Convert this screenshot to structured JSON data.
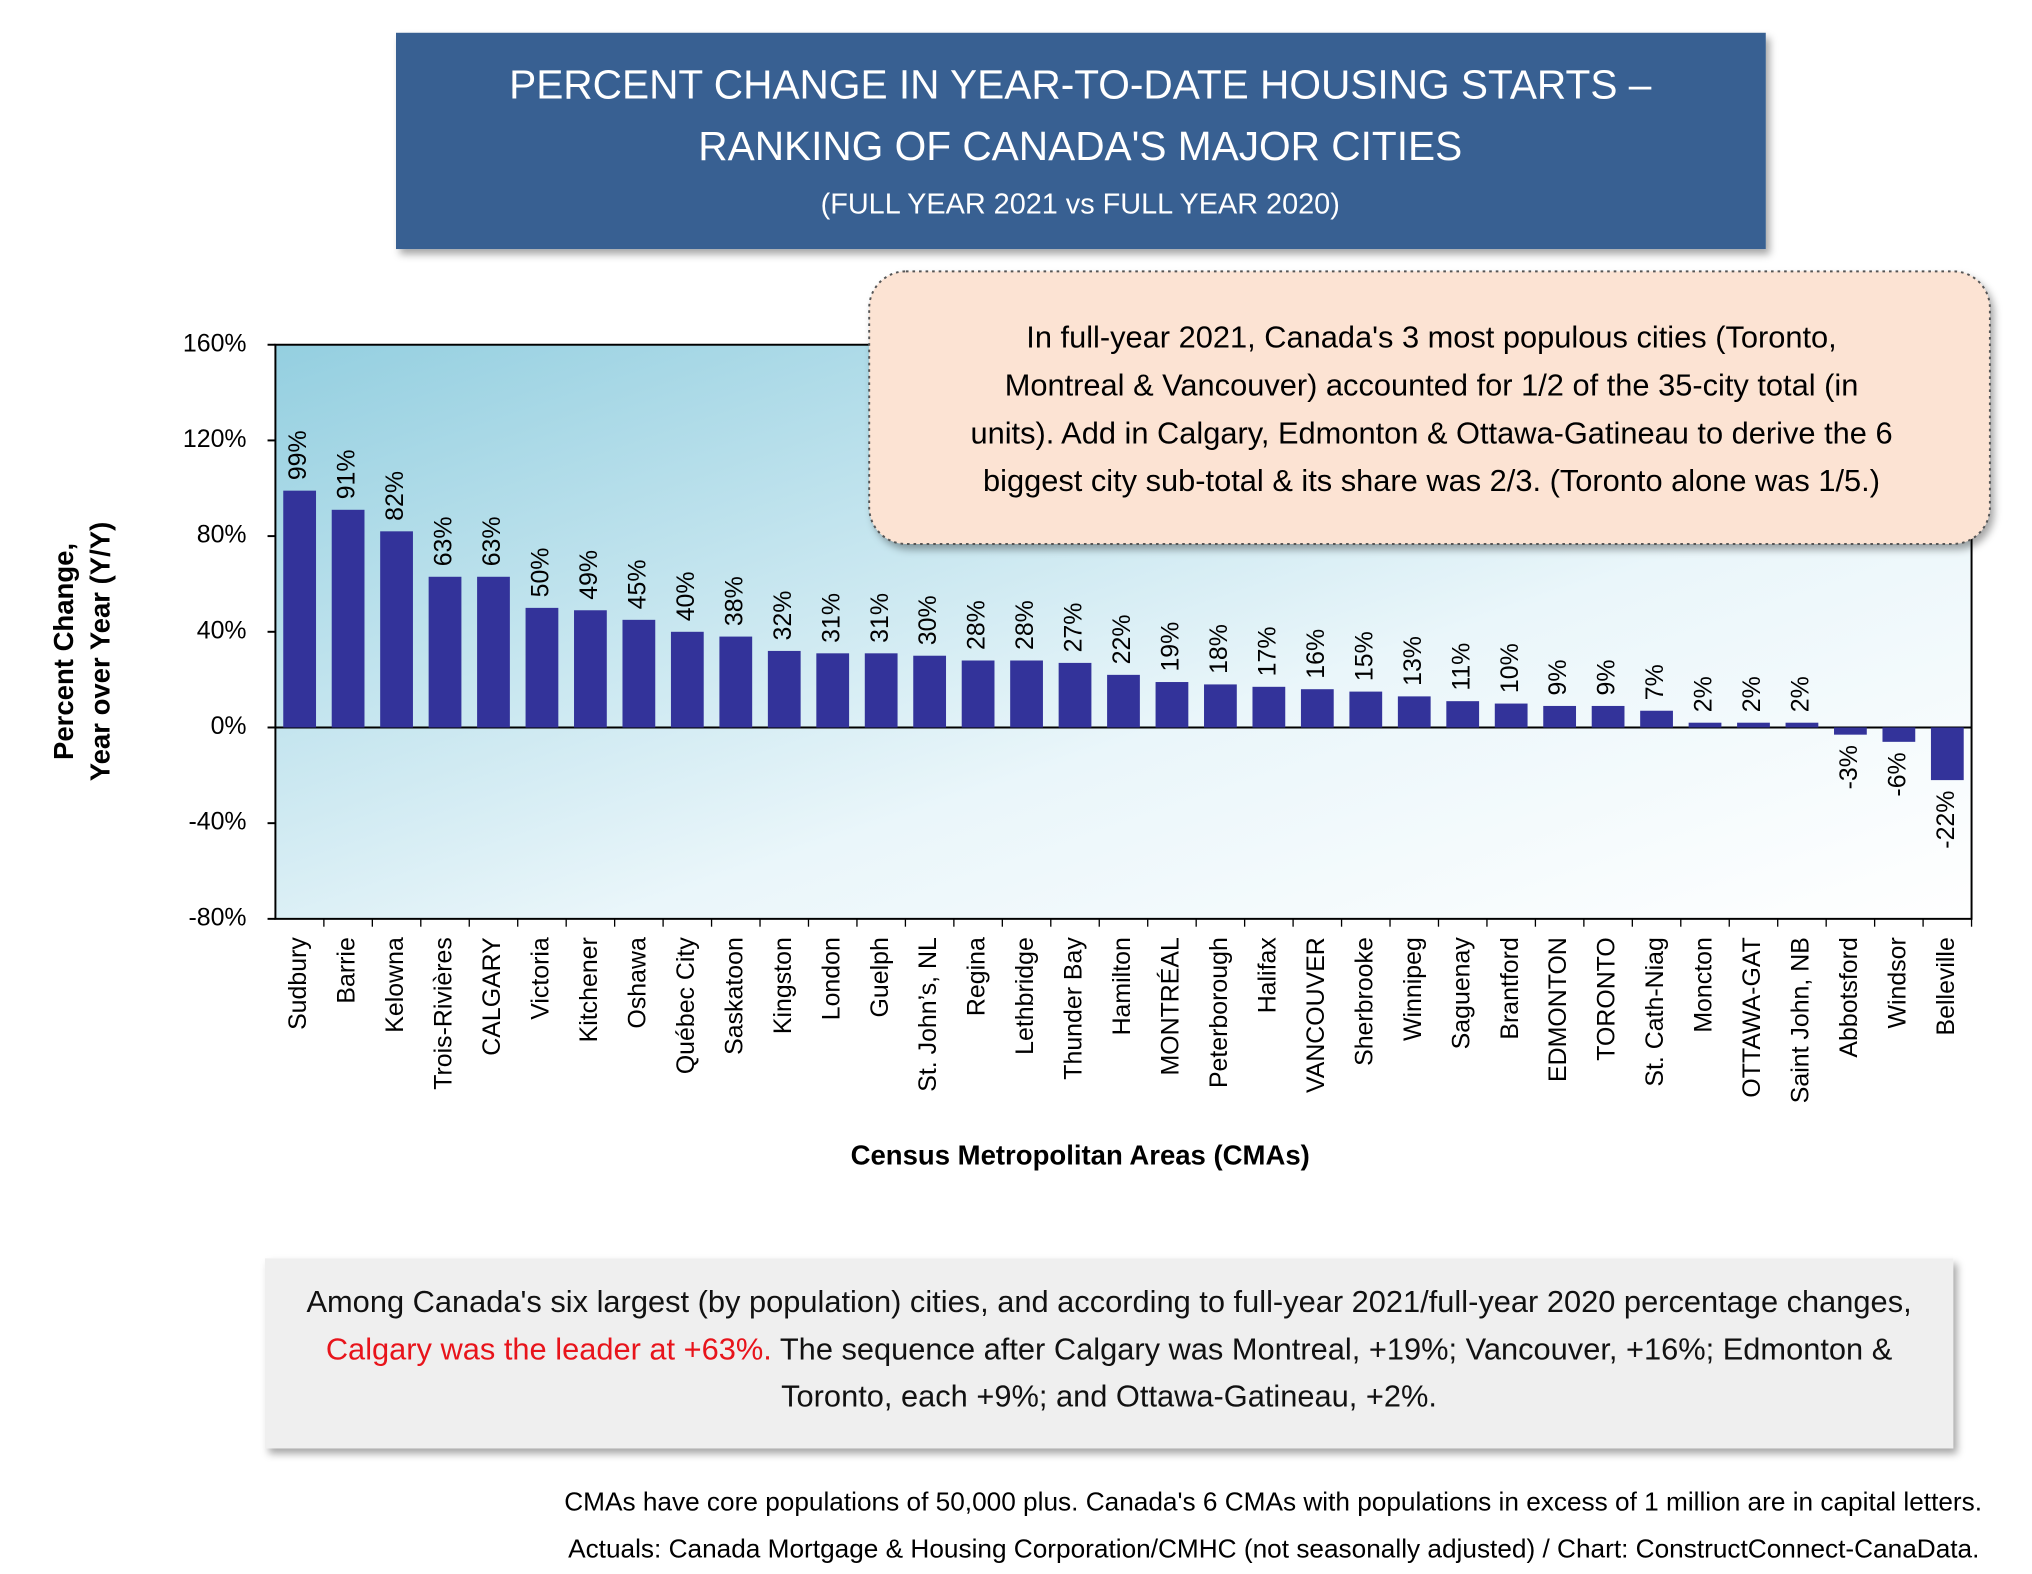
{
  "chart_data": {
    "type": "bar",
    "title": [
      "PERCENT CHANGE IN YEAR-TO-DATE HOUSING STARTS –",
      "RANKING OF CANADA'S MAJOR CITIES"
    ],
    "subtitle": "(FULL YEAR 2021 vs FULL YEAR 2020)",
    "annotation": [
      "In full-year 2021, Canada's 3 most populous cities (Toronto,",
      "Montreal & Vancouver)  accounted for 1/2 of the 35-city total (in",
      "units). Add in Calgary, Edmonton & Ottawa-Gatineau to derive the 6",
      "biggest city sub-total & its share was 2/3. (Toronto alone was 1/5.)"
    ],
    "y_label": [
      "Percent Change,",
      "Year over Year (Y/Y)"
    ],
    "x_label": "Census Metropolitan Areas (CMAs)",
    "categories": [
      "Sudbury",
      "Barrie",
      "Kelowna",
      "Trois-Rivières",
      "CALGARY",
      "Victoria",
      "Kitchener",
      "Oshawa",
      "Québec City",
      "Saskatoon",
      "Kingston",
      "London",
      "Guelph",
      "St. John’s, NL",
      "Regina",
      "Lethbridge",
      "Thunder Bay",
      "Hamilton",
      "MONTRÉAL",
      "Peterborough",
      "Halifax",
      "VANCOUVER",
      "Sherbrooke",
      "Winnipeg",
      "Saguenay",
      "Brantford",
      "EDMONTON",
      "TORONTO",
      "St. Cath-Niag",
      "Moncton",
      "OTTAWA-GAT",
      "Saint John, NB",
      "Abbotsford",
      "Windsor",
      "Belleville"
    ],
    "values": [
      99,
      91,
      82,
      63,
      63,
      50,
      49,
      45,
      40,
      38,
      32,
      31,
      31,
      30,
      28,
      28,
      27,
      22,
      19,
      18,
      17,
      16,
      15,
      13,
      11,
      10,
      9,
      9,
      7,
      2,
      2,
      2,
      -3,
      -6,
      -22
    ],
    "value_labels": [
      "99%",
      "91%",
      "82%",
      "63%",
      "63%",
      "50%",
      "49%",
      "45%",
      "40%",
      "38%",
      "32%",
      "31%",
      "31%",
      "30%",
      "28%",
      "28%",
      "27%",
      "22%",
      "19%",
      "18%",
      "17%",
      "16%",
      "15%",
      "13%",
      "11%",
      "10%",
      "9%",
      "9%",
      "7%",
      "2%",
      "2%",
      "2%",
      "-3%",
      "-6%",
      "-22%"
    ],
    "color": "#33339a",
    "ylim": [
      -80,
      160
    ],
    "yticks": [
      {
        "value": -80,
        "label": "-80%"
      },
      {
        "value": -40,
        "label": "-40%"
      },
      {
        "value": 0,
        "label": "0%"
      },
      {
        "value": 40,
        "label": "40%"
      },
      {
        "value": 80,
        "label": "80%"
      },
      {
        "value": 120,
        "label": "120%"
      },
      {
        "value": 160,
        "label": "160%"
      }
    ],
    "note": {
      "before": "Among Canada's six largest (by population) cities, and according to full-year 2021/full-year 2020 percentage changes, ",
      "highlight": "Calgary was the leader at +63%.",
      "after": " The sequence after Calgary was Montreal, +19%; Vancouver, +16%; Edmonton & Toronto, each +9%; and Ottawa-Gatineau, +2%."
    },
    "footnotes": [
      "CMAs have core populations of 50,000 plus. Canada's 6 CMAs with populations in excess of 1 million are in capital letters.",
      "Actuals: Canada Mortgage & Housing Corporation/CMHC (not seasonally adjusted) / Chart: ConstructConnect-CanaData."
    ]
  }
}
